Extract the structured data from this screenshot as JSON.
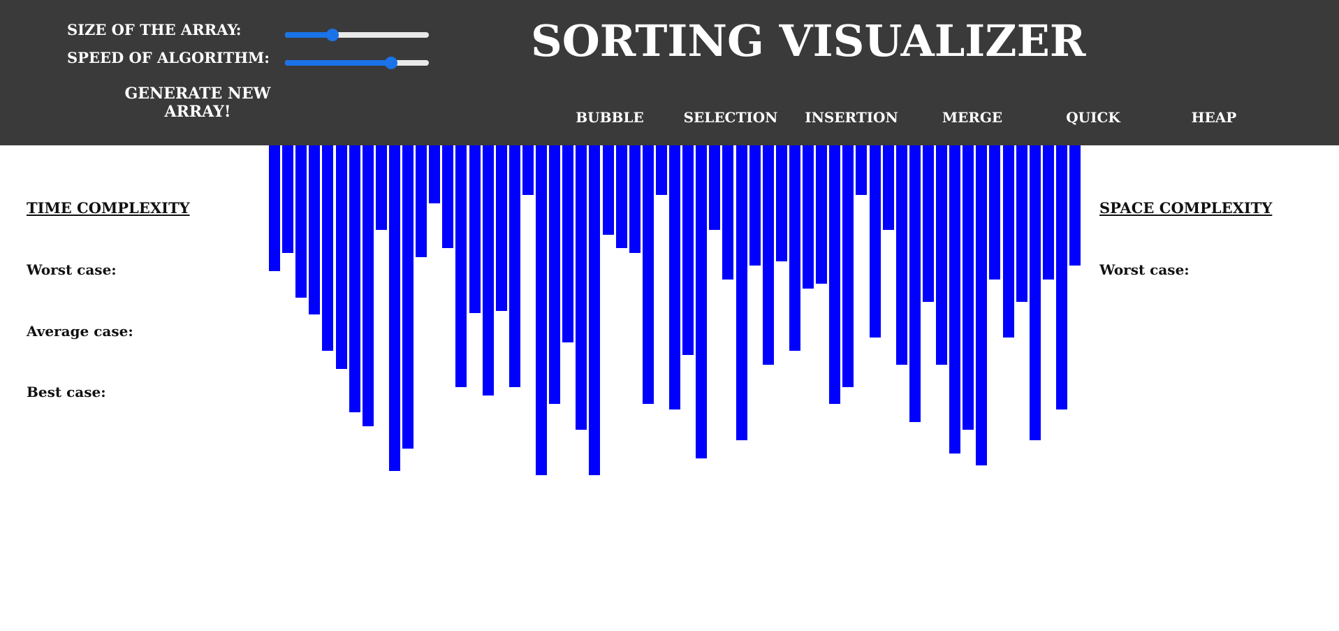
{
  "header": {
    "size_label": "SIZE OF THE ARRAY:",
    "speed_label": "SPEED OF ALGORITHM:",
    "size_value": 0.33,
    "speed_value": 0.74,
    "generate_label": "GENERATE NEW ARRAY!",
    "title": "SORTING VISUALIZER",
    "algorithms": [
      "BUBBLE",
      "SELECTION",
      "INSERTION",
      "MERGE",
      "QUICK",
      "HEAP"
    ],
    "accent_color": "#1a73e8",
    "background_color": "#3a3a3a"
  },
  "time_complexity": {
    "title": "TIME COMPLEXITY",
    "worst_label": "Worst case:",
    "average_label": "Average case:",
    "best_label": "Best case:"
  },
  "space_complexity": {
    "title": "SPACE COMPLEXITY",
    "worst_label": "Worst case:"
  },
  "chart_data": {
    "type": "bar",
    "color": "#0000ff",
    "values": [
      180,
      154,
      218,
      242,
      294,
      320,
      382,
      402,
      121,
      466,
      434,
      160,
      83,
      147,
      346,
      240,
      358,
      237,
      346,
      71,
      472,
      370,
      282,
      407,
      472,
      128,
      147,
      154,
      370,
      71,
      378,
      300,
      448,
      121,
      192,
      422,
      172,
      314,
      166,
      294,
      205,
      198,
      370,
      346,
      71,
      275,
      121,
      314,
      396,
      224,
      314,
      441,
      407,
      458,
      192,
      275,
      224,
      422,
      192,
      378,
      172
    ]
  }
}
